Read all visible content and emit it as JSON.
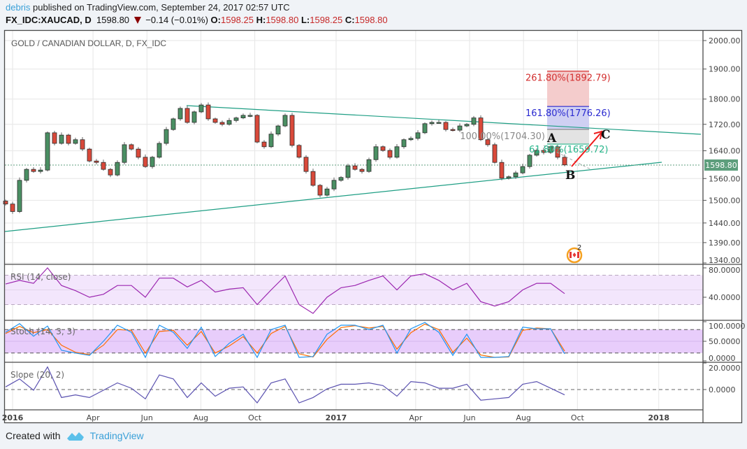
{
  "header": {
    "user": "debris",
    "published_text": "published on TradingView.com, September 24, 2017 02:57 UTC",
    "symbol": "FX_IDC:XAUCAD, D",
    "last": "1598.80",
    "change": "−0.14 (−0.01%)",
    "o_label": "O:",
    "o": "1598.25",
    "h_label": "H:",
    "h": "1598.80",
    "l_label": "L:",
    "l": "1598.25",
    "c_label": "C:",
    "c": "1598.80"
  },
  "chart_data": {
    "type": "candlestick",
    "title": "GOLD / CANADIAN DOLLAR, D, FX_IDC",
    "scale": "log",
    "ylim": [
      1340,
      2000
    ],
    "yticks": [
      "2000.00",
      "1900.00",
      "1800.00",
      "1720.00",
      "1640.00",
      "1560.00",
      "1500.00",
      "1440.00",
      "1390.00",
      "1340.00"
    ],
    "ytick_values": [
      2000,
      1900,
      1800,
      1720,
      1640,
      1560,
      1500,
      1440,
      1390,
      1340
    ],
    "xticks": [
      "2016",
      "Apr",
      "Jun",
      "Aug",
      "Oct",
      "2017",
      "Apr",
      "Jun",
      "Aug",
      "Oct",
      "2018"
    ],
    "xtick_days_from_2016": [
      0,
      91,
      152,
      213,
      274,
      366,
      456,
      517,
      578,
      639,
      731
    ],
    "bold_xticks": [
      "2016",
      "2017",
      "2018"
    ],
    "closes_approx_8day": [
      1490,
      1470,
      1555,
      1586,
      1580,
      1584,
      1694,
      1662,
      1687,
      1662,
      1673,
      1645,
      1610,
      1606,
      1586,
      1570,
      1606,
      1658,
      1645,
      1621,
      1594,
      1621,
      1662,
      1704,
      1737,
      1770,
      1726,
      1759,
      1781,
      1737,
      1726,
      1720,
      1732,
      1740,
      1748,
      1748,
      1666,
      1652,
      1690,
      1715,
      1748,
      1656,
      1621,
      1580,
      1541,
      1514,
      1531,
      1555,
      1563,
      1596,
      1586,
      1580,
      1614,
      1652,
      1641,
      1621,
      1652,
      1673,
      1677,
      1694,
      1722,
      1726,
      1726,
      1704,
      1702,
      1715,
      1720,
      1740,
      1673,
      1658,
      1606,
      1561,
      1565,
      1576,
      1594,
      1627,
      1641,
      1635,
      1652,
      1621,
      1598.8
    ],
    "last_price_label": "1598.80",
    "colors": {
      "up": "#4a8f63",
      "down": "#d9493a",
      "trend": "#1e9e84",
      "rsi": "#9c27b0",
      "stoch_k": "#2196f3",
      "stoch_d": "#ff6d00",
      "slope": "#5b52b0",
      "last": "#5d9e7c"
    },
    "fib": [
      {
        "label": "261.80%(1892.79)",
        "price": 1892.79,
        "color": "#d32f2f"
      },
      {
        "label": "161.80%(1776.26)",
        "price": 1776.26,
        "color": "#2a2ad0"
      },
      {
        "label": "100.00%(1704.30)",
        "price": 1704.3,
        "color": "#8a8a8a"
      },
      {
        "label": "61.80%(1659.72)",
        "price": 1659.72,
        "color": "#26b58a"
      }
    ],
    "wave_labels": [
      "A",
      "B",
      "C"
    ],
    "event_badge_count": "2",
    "indicators": {
      "rsi": {
        "title": "RSI (14, close)",
        "ticks": [
          "80.0000",
          "40.0000"
        ],
        "tick_values": [
          80,
          40
        ],
        "bands": [
          70,
          30
        ],
        "values": [
          58,
          63,
          59,
          80,
          56,
          49,
          40,
          44,
          56,
          56,
          40,
          66,
          66,
          54,
          63,
          47,
          51,
          53,
          30,
          50,
          69,
          30,
          18,
          40,
          53,
          56,
          63,
          69,
          50,
          69,
          72,
          63,
          50,
          59,
          34,
          28,
          34,
          50,
          59,
          59,
          45
        ]
      },
      "stoch": {
        "title": "Stoch (14, 3, 3)",
        "ticks": [
          "100.0000",
          "50.0000",
          "0.0000"
        ],
        "tick_values": [
          100,
          50,
          0
        ],
        "bands": [
          80,
          20
        ],
        "k": [
          73,
          95,
          63,
          89,
          27,
          20,
          14,
          50,
          91,
          73,
          9,
          91,
          73,
          32,
          86,
          11,
          45,
          68,
          9,
          80,
          91,
          9,
          11,
          68,
          91,
          91,
          80,
          91,
          20,
          82,
          98,
          73,
          14,
          68,
          9,
          9,
          11,
          86,
          82,
          82,
          18
        ],
        "d": [
          70,
          88,
          72,
          80,
          40,
          22,
          16,
          40,
          80,
          78,
          20,
          75,
          78,
          40,
          75,
          20,
          38,
          62,
          20,
          70,
          88,
          18,
          10,
          55,
          85,
          90,
          84,
          88,
          30,
          72,
          94,
          80,
          22,
          58,
          15,
          9,
          10,
          78,
          84,
          82,
          25
        ]
      },
      "slope": {
        "title": "Slope (20, 2)",
        "ticks": [
          "20.0000",
          "0.0000"
        ],
        "tick_values": [
          20,
          0
        ],
        "values": [
          2,
          8,
          -0.5,
          17,
          -6,
          -4,
          -6,
          -0.5,
          5,
          1,
          -7,
          11,
          8,
          -6,
          5,
          -5,
          1,
          2,
          -10,
          5,
          8,
          -10,
          -6,
          0.5,
          4,
          4,
          5,
          3,
          -5,
          6,
          5,
          1,
          1,
          4,
          -8,
          -7,
          -6,
          4,
          6,
          1,
          -4
        ]
      }
    }
  },
  "footer": {
    "created_with": "Created with",
    "brand": "TradingView"
  }
}
